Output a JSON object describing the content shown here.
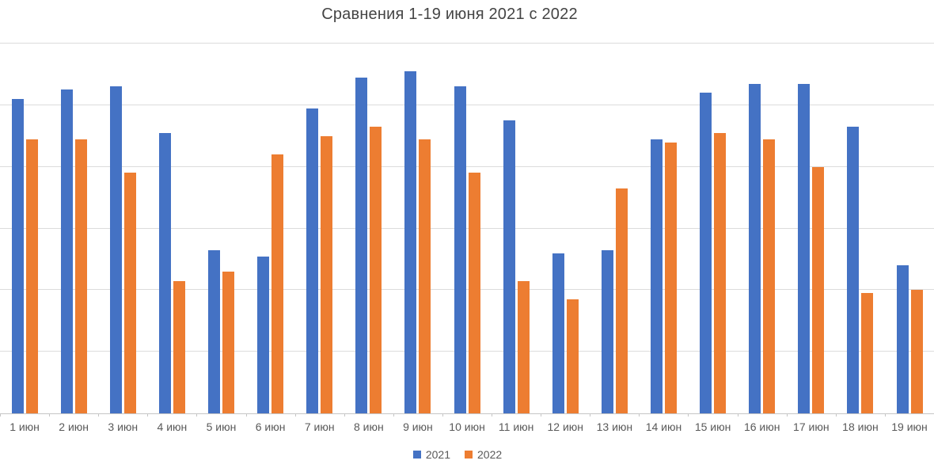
{
  "chart_data": {
    "type": "bar",
    "title": "Сравнения 1-19 июня 2021 с 2022",
    "categories": [
      "1 июн",
      "2 июн",
      "3 июн",
      "4 июн",
      "5 июн",
      "6 июн",
      "7 июн",
      "8 июн",
      "9 июн",
      "10 июн",
      "11 июн",
      "12 июн",
      "13 июн",
      "14 июн",
      "15 июн",
      "16 июн",
      "17 июн",
      "18 июн",
      "19 июн"
    ],
    "series": [
      {
        "name": "2021",
        "color": "#4472C4",
        "values": [
          51,
          52.5,
          53,
          45.5,
          26.5,
          25.5,
          49.5,
          54.5,
          55.5,
          53,
          47.5,
          26,
          26.5,
          44.5,
          52,
          53.5,
          53.5,
          46.5,
          24
        ]
      },
      {
        "name": "2022",
        "color": "#ED7D31",
        "values": [
          44.5,
          44.5,
          39,
          21.5,
          23,
          42,
          45,
          46.5,
          44.5,
          39,
          21.5,
          18.5,
          36.5,
          44,
          45.5,
          44.5,
          40,
          19.5,
          20
        ]
      }
    ],
    "xlabel": "",
    "ylabel": "",
    "ylim": [
      0,
      60
    ],
    "gridline_step": 10,
    "grid": true,
    "y_axis_tick_labels_visible": false,
    "value_scale_note": "y-axis is unlabeled; values estimated from gridlines at 10 units per gridline interval (6 intervals to top gridline)",
    "legend_position": "bottom",
    "legend": [
      "2021",
      "2022"
    ]
  },
  "colors": {
    "series_2021": "#4472C4",
    "series_2022": "#ED7D31",
    "gridline": "#DCDCDC",
    "axis_line": "#C6C6C6",
    "text": "#595959",
    "title_text": "#444444",
    "background": "#FFFFFF"
  }
}
